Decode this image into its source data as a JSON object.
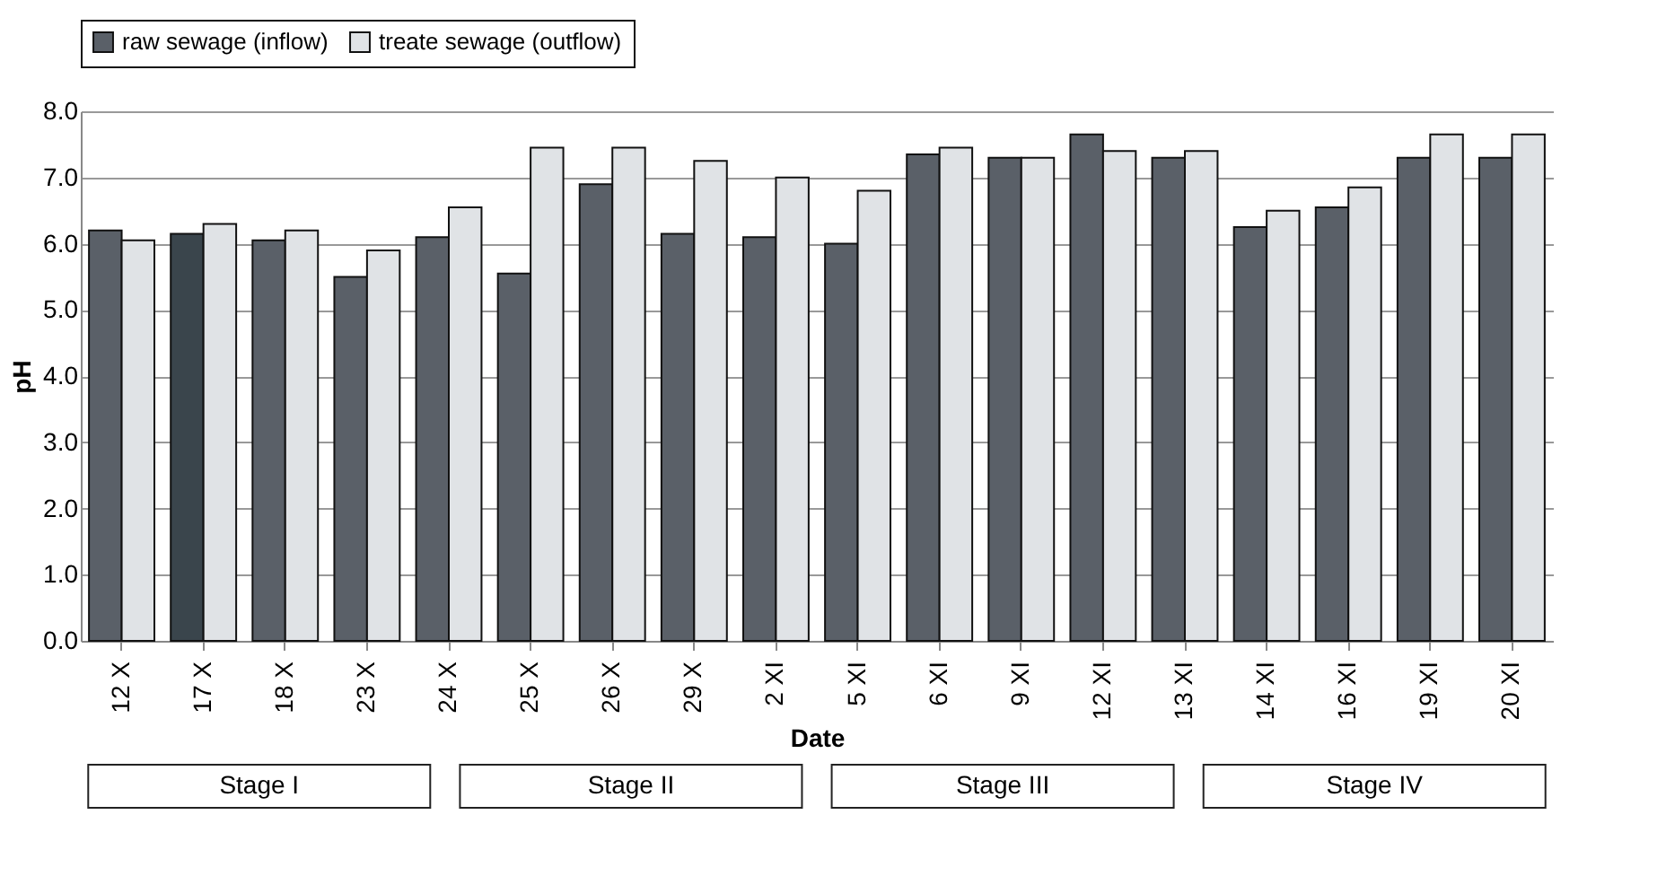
{
  "chart_data": {
    "type": "bar",
    "xlabel": "Date",
    "ylabel": "pH",
    "categories": [
      "12 X",
      "17 X",
      "18 X",
      "23 X",
      "24 X",
      "25 X",
      "26 X",
      "29 X",
      "2 XI",
      "5 XI",
      "6 XI",
      "9 XI",
      "12 XI",
      "13 XI",
      "14 XI",
      "16 XI",
      "19 XI",
      "20 XI"
    ],
    "series": [
      {
        "name": "raw sewage (inflow)",
        "color": "#5a6068",
        "colors": [
          "#5a6068",
          "#3a454c",
          "#5a6068",
          "#5a6068",
          "#5a6068",
          "#5a6068",
          "#5a6068",
          "#5a6068",
          "#5a6068",
          "#5a6068",
          "#5a6068",
          "#5a6068",
          "#5a6068",
          "#5a6068",
          "#5a6068",
          "#5a6068",
          "#5a6068",
          "#5a6068"
        ],
        "values": [
          6.2,
          6.15,
          6.05,
          5.5,
          6.1,
          5.55,
          6.9,
          6.15,
          6.1,
          6.0,
          7.35,
          7.3,
          7.65,
          7.3,
          6.25,
          6.55,
          7.3,
          7.3
        ]
      },
      {
        "name": "treate sewage (outflow)",
        "color": "#e0e3e6",
        "values": [
          6.05,
          6.3,
          6.2,
          5.9,
          6.55,
          7.45,
          7.45,
          7.25,
          7.0,
          6.8,
          7.45,
          7.3,
          7.4,
          7.4,
          6.5,
          6.85,
          7.65,
          7.65
        ]
      }
    ],
    "ylim": [
      0,
      8
    ],
    "yticks": [
      {
        "value": 0,
        "label": "0.0"
      },
      {
        "value": 1,
        "label": "1.0"
      },
      {
        "value": 2,
        "label": "2.0"
      },
      {
        "value": 3,
        "label": "3.0"
      },
      {
        "value": 4,
        "label": "4.0"
      },
      {
        "value": 5,
        "label": "5.0"
      },
      {
        "value": 6,
        "label": "6.0"
      },
      {
        "value": 7,
        "label": "7.0"
      },
      {
        "value": 8,
        "label": "8.0"
      }
    ],
    "grid": "y",
    "legend": "top",
    "annotations": [
      "Stage I",
      "Stage II",
      "Stage III",
      "Stage IV"
    ]
  }
}
